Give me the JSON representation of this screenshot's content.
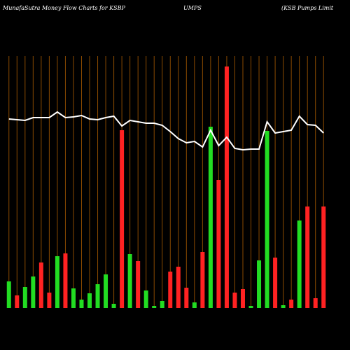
{
  "chart_data": {
    "type": "bar",
    "title_parts": [
      "MunafaSutra  Money Flow  Charts for KSBP",
      "UMPS",
      "(KSB Pumps Limit"
    ],
    "categories": [
      null,
      null,
      null,
      null,
      null,
      null,
      null,
      null,
      null,
      null,
      null,
      null,
      null,
      null,
      null,
      null,
      null,
      null,
      null,
      null,
      null,
      null,
      null,
      null,
      null,
      null,
      null,
      null,
      null,
      null,
      null,
      null,
      null,
      null,
      null,
      null,
      null,
      null,
      null,
      null
    ],
    "values": [
      38,
      18,
      30,
      45,
      65,
      22,
      74,
      78,
      28,
      12,
      21,
      34,
      48,
      6,
      254,
      77,
      67,
      25,
      3,
      10,
      52,
      59,
      29,
      8,
      80,
      259,
      183,
      345,
      22,
      27,
      3,
      68,
      253,
      72,
      4,
      12,
      125,
      145,
      14,
      145
    ],
    "colors": [
      "#22dd22",
      "#ff2222",
      "#22dd22",
      "#22dd22",
      "#ff2222",
      "#ff2222",
      "#22dd22",
      "#ff2222",
      "#22dd22",
      "#22dd22",
      "#22dd22",
      "#22dd22",
      "#22dd22",
      "#22dd22",
      "#ff2222",
      "#22dd22",
      "#ff2222",
      "#22dd22",
      "#22dd22",
      "#22dd22",
      "#ff2222",
      "#ff2222",
      "#ff2222",
      "#22dd22",
      "#ff2222",
      "#22dd22",
      "#ff2222",
      "#ff2222",
      "#ff2222",
      "#ff2222",
      "#22dd22",
      "#22dd22",
      "#22dd22",
      "#ff2222",
      "#22dd22",
      "#ff2222",
      "#22dd22",
      "#ff2222",
      "#ff2222",
      "#ff2222"
    ],
    "line_values": [
      270,
      269,
      268,
      272,
      272,
      272,
      280,
      272,
      273,
      275,
      270,
      269,
      272,
      274,
      260,
      268,
      266,
      264,
      264,
      261,
      252,
      242,
      236,
      238,
      230,
      254,
      232,
      244,
      228,
      226,
      227,
      227,
      266,
      250,
      252,
      254,
      274,
      262,
      261,
      250
    ],
    "line_color": "#ffffff",
    "ylim": [
      0,
      360
    ],
    "grid": true,
    "grid_color": "#8a4a00"
  }
}
